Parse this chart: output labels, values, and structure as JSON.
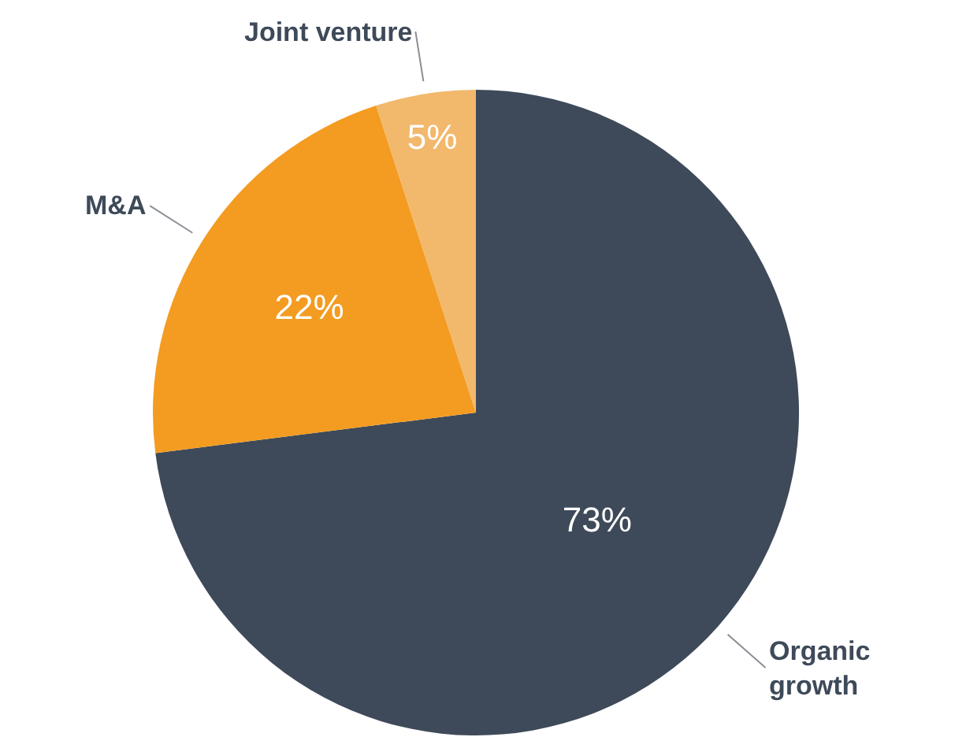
{
  "chart_data": {
    "type": "pie",
    "categories": [
      "Organic growth",
      "M&A",
      "Joint venture"
    ],
    "values": [
      73,
      22,
      5
    ],
    "value_labels": [
      "73%",
      "22%",
      "5%"
    ],
    "colors": [
      "#3e4a59",
      "#f39c21",
      "#f2b86c"
    ],
    "legend": false
  }
}
